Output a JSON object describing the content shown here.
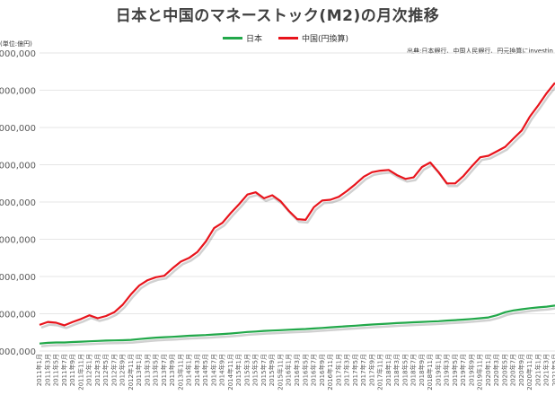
{
  "chart_data": {
    "type": "line",
    "title": "日本と中国のマネーストック(M2)の月次推移",
    "unit_label": "(単位:億円)",
    "source_note": "出典:日本銀行、中国人民銀行、円元換算にinvestin",
    "legend_position": "top",
    "grid": true,
    "ytick_labels": [
      "0,000,000",
      "5,000,000",
      "5,000,000",
      "5,000,000",
      "5,000,000",
      "5,000,000",
      "5,000,000",
      "5,000,000",
      "0,000,000"
    ],
    "ylim": [
      0,
      4000000
    ],
    "x": [
      "2011年1月",
      "2011年3月",
      "2011年5月",
      "2011年7月",
      "2011年9月",
      "2011年11月",
      "2012年1月",
      "2012年3月",
      "2012年5月",
      "2012年7月",
      "2012年9月",
      "2012年11月",
      "2013年1月",
      "2013年3月",
      "2013年5月",
      "2013年7月",
      "2013年9月",
      "2013年11月",
      "2014年1月",
      "2014年3月",
      "2014年5月",
      "2014年7月",
      "2014年9月",
      "2014年11月",
      "2015年1月",
      "2015年3月",
      "2015年5月",
      "2015年7月",
      "2015年9月",
      "2015年11月",
      "2016年1月",
      "2016年3月",
      "2016年5月",
      "2016年7月",
      "2016年9月",
      "2016年11月",
      "2017年1月",
      "2017年3月",
      "2017年5月",
      "2017年7月",
      "2017年9月",
      "2017年11月",
      "2018年1月",
      "2018年3月",
      "2018年5月",
      "2018年7月",
      "2018年9月",
      "2018年11月",
      "2019年1月",
      "2019年3月",
      "2019年5月",
      "2019年7月",
      "2019年9月",
      "2019年11月",
      "2020年1月",
      "2020年3月",
      "2020年5月",
      "2020年7月",
      "2020年9月",
      "2020年11月",
      "2021年1月",
      "2021年3月",
      "2021年5月"
    ],
    "series": [
      {
        "name": "日本",
        "color": "#22a84a",
        "values": [
          100000,
          110000,
          115000,
          115000,
          120000,
          125000,
          130000,
          135000,
          140000,
          142000,
          145000,
          150000,
          160000,
          170000,
          180000,
          185000,
          190000,
          198000,
          205000,
          210000,
          215000,
          222000,
          228000,
          235000,
          245000,
          255000,
          262000,
          270000,
          275000,
          280000,
          285000,
          290000,
          295000,
          302000,
          310000,
          318000,
          325000,
          332000,
          340000,
          348000,
          355000,
          362000,
          368000,
          375000,
          380000,
          385000,
          390000,
          395000,
          400000,
          408000,
          415000,
          422000,
          430000,
          440000,
          450000,
          480000,
          520000,
          545000,
          560000,
          575000,
          585000,
          595000,
          610000
        ]
      },
      {
        "name": "中国(円換算)",
        "color": "#e8141c",
        "values": [
          350000,
          390000,
          380000,
          345000,
          390000,
          430000,
          480000,
          440000,
          470000,
          520000,
          620000,
          760000,
          880000,
          950000,
          990000,
          1010000,
          1110000,
          1200000,
          1250000,
          1330000,
          1470000,
          1650000,
          1720000,
          1850000,
          1970000,
          2100000,
          2130000,
          2050000,
          2090000,
          2010000,
          1880000,
          1770000,
          1760000,
          1930000,
          2020000,
          2030000,
          2070000,
          2150000,
          2240000,
          2340000,
          2400000,
          2420000,
          2430000,
          2360000,
          2310000,
          2330000,
          2470000,
          2530000,
          2400000,
          2250000,
          2250000,
          2350000,
          2480000,
          2600000,
          2620000,
          2680000,
          2740000,
          2850000,
          2960000,
          3150000,
          3300000,
          3460000,
          3600000
        ]
      }
    ]
  }
}
